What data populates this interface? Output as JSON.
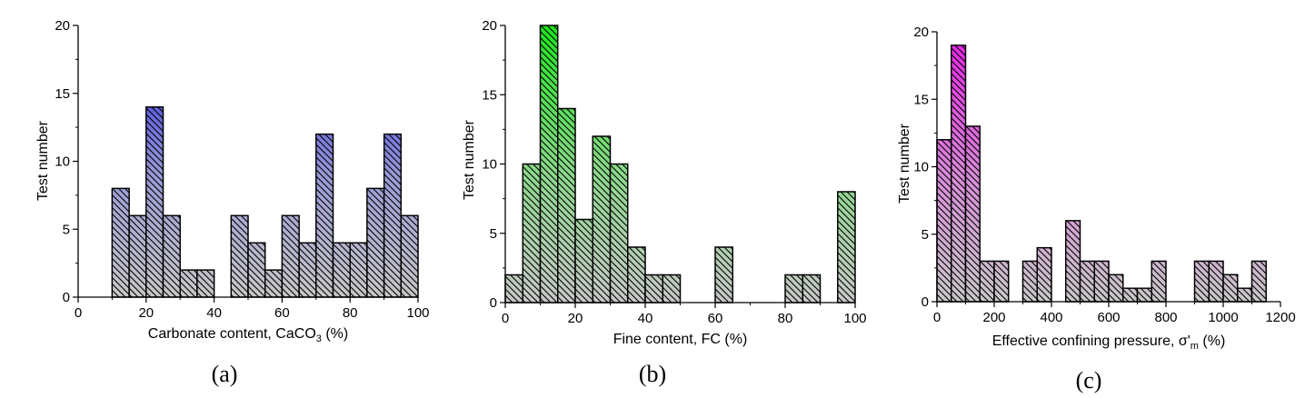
{
  "chart_data": [
    {
      "type": "bar",
      "panel_label": "(a)",
      "xlabel": "Carbonate content, CaCO",
      "xlabel_sub": "3",
      "xlabel_suffix": " (%)",
      "ylabel": "Test number",
      "xlim": [
        0,
        100
      ],
      "ylim": [
        0,
        20
      ],
      "xticks": [
        0,
        20,
        40,
        60,
        80,
        100
      ],
      "yticks": [
        0,
        5,
        10,
        15,
        20
      ],
      "bin_width": 5,
      "bin_starts": [
        10,
        15,
        20,
        25,
        30,
        35,
        40,
        45,
        50,
        55,
        60,
        65,
        70,
        75,
        80,
        85,
        90,
        95
      ],
      "values": [
        8,
        6,
        14,
        6,
        2,
        2,
        0,
        6,
        4,
        2,
        6,
        4,
        12,
        4,
        4,
        8,
        12,
        6
      ],
      "colors": {
        "top": "#1a1ae6",
        "bottom": "#c8c8c8"
      }
    },
    {
      "type": "bar",
      "panel_label": "(b)",
      "xlabel": "Fine content, FC (%)",
      "xlabel_sub": "",
      "xlabel_suffix": "",
      "ylabel": "Test number",
      "xlim": [
        0,
        100
      ],
      "ylim": [
        0,
        20
      ],
      "xticks": [
        0,
        20,
        40,
        60,
        80,
        100
      ],
      "yticks": [
        0,
        5,
        10,
        15,
        20
      ],
      "bin_width": 5,
      "bin_starts": [
        0,
        5,
        10,
        15,
        20,
        25,
        30,
        35,
        40,
        45,
        50,
        55,
        60,
        65,
        70,
        75,
        80,
        85,
        90,
        95
      ],
      "values": [
        2,
        10,
        20,
        14,
        6,
        12,
        10,
        4,
        2,
        2,
        0,
        0,
        4,
        0,
        0,
        0,
        2,
        2,
        0,
        8
      ],
      "colors": {
        "top": "#1ee61e",
        "bottom": "#c8c8c8"
      }
    },
    {
      "type": "bar",
      "panel_label": "(c)",
      "xlabel": "Effective confining pressure, σ'",
      "xlabel_sub": "m",
      "xlabel_suffix": " (%)",
      "ylabel": "Test number",
      "xlim": [
        0,
        1200
      ],
      "ylim": [
        0,
        20
      ],
      "xticks": [
        0,
        200,
        400,
        600,
        800,
        1000,
        1200
      ],
      "yticks": [
        0,
        5,
        10,
        15,
        20
      ],
      "bin_width": 50,
      "bin_starts": [
        0,
        50,
        100,
        150,
        200,
        250,
        300,
        350,
        400,
        450,
        500,
        550,
        600,
        650,
        700,
        750,
        800,
        850,
        900,
        950,
        1000,
        1050,
        1100
      ],
      "values": [
        12,
        19,
        13,
        3,
        3,
        0,
        3,
        4,
        0,
        6,
        3,
        3,
        2,
        1,
        1,
        3,
        0,
        0,
        3,
        3,
        2,
        1,
        3
      ],
      "colors": {
        "top": "#e61ee6",
        "bottom": "#c8c8c8"
      }
    }
  ]
}
